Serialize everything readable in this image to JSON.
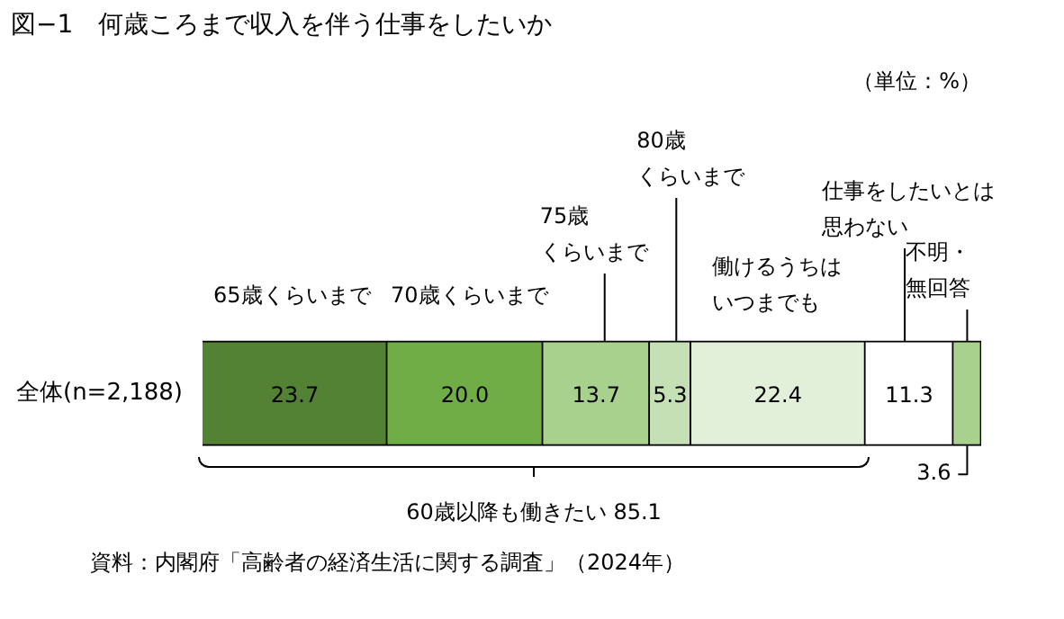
{
  "chart_data": {
    "type": "bar",
    "orientation": "horizontal",
    "stacked": true,
    "title": "図−1　何歳ころまで収入を伴う仕事をしたいか",
    "subtitle": "（単位：%）",
    "categories": [
      "全体(n=2,188)"
    ],
    "series": [
      {
        "name": "65歳くらいまで",
        "color": "#548235",
        "values": [
          23.7
        ],
        "value_labels": [
          "23.7"
        ]
      },
      {
        "name": "70歳くらいまで",
        "color": "#70ad47",
        "values": [
          20.0
        ],
        "value_labels": [
          "20.0"
        ]
      },
      {
        "name": "75歳くらいまで",
        "color": "#a9d18e",
        "values": [
          13.7
        ],
        "value_labels": [
          "13.7"
        ]
      },
      {
        "name": "80歳くらいまで",
        "color": "#c5e0b4",
        "values": [
          5.3
        ],
        "value_labels": [
          "5.3"
        ]
      },
      {
        "name": "働けるうちはいつまでも",
        "color": "#e2f0d9",
        "values": [
          22.4
        ],
        "value_labels": [
          "22.4"
        ]
      },
      {
        "name": "仕事をしたいとは思わない",
        "color": "#ffffff",
        "values": [
          11.3
        ],
        "value_labels": [
          "11.3"
        ]
      },
      {
        "name": "不明・無回答",
        "color": "#a9d18e",
        "values": [
          3.6
        ],
        "value_labels": [
          "3.6"
        ]
      }
    ],
    "xlim": [
      0,
      100
    ],
    "tick_labels": "y",
    "legend": false,
    "grid": false,
    "annotations": [
      "60歳以降も働きたい 85.1",
      "資料：内閣府「高齢者の経済生活に関する調査」（2024年）"
    ]
  }
}
